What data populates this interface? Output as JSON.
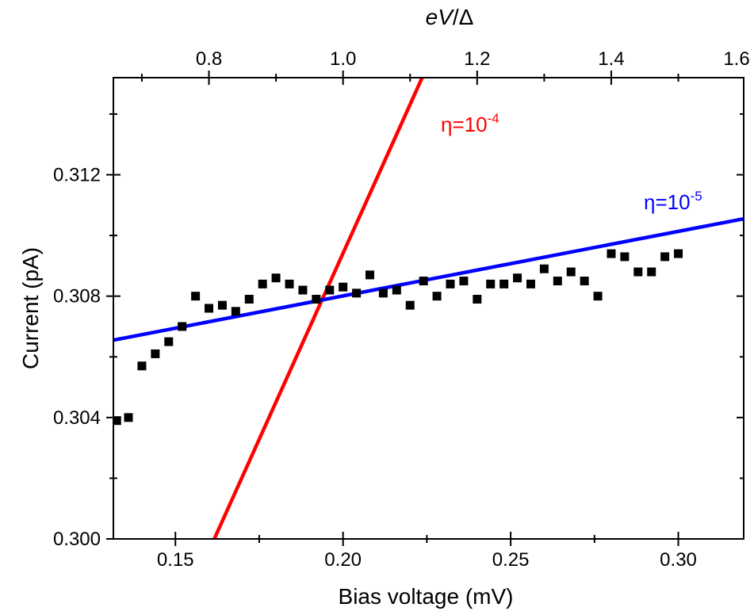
{
  "chart_data": {
    "type": "scatter",
    "title": "",
    "xlabel": "Bias voltage (mV)",
    "ylabel": "Current (pA)",
    "top_xlabel_italic": "eV",
    "top_xlabel_rest": "/Δ",
    "xlim": [
      0.1315,
      0.3195
    ],
    "ylim": [
      0.3,
      0.3152
    ],
    "top_xlim": [
      0.6575,
      1.5975
    ],
    "x_ticks": [
      0.15,
      0.2,
      0.25,
      0.3
    ],
    "x_tick_labels": [
      "0.15",
      "0.20",
      "0.25",
      "0.30"
    ],
    "top_x_ticks": [
      0.8,
      1.0,
      1.2,
      1.4,
      1.6
    ],
    "top_x_tick_labels": [
      "0.8",
      "1.0",
      "1.2",
      "1.4",
      "1.6"
    ],
    "y_ticks": [
      0.3,
      0.304,
      0.308,
      0.312
    ],
    "y_tick_labels": [
      "0.300",
      "0.304",
      "0.308",
      "0.312"
    ],
    "grid": false,
    "series": [
      {
        "kind": "points",
        "marker": "square",
        "color": "#000000",
        "x": [
          0.1325,
          0.136,
          0.14,
          0.144,
          0.148,
          0.152,
          0.156,
          0.16,
          0.164,
          0.168,
          0.172,
          0.176,
          0.18,
          0.184,
          0.188,
          0.192,
          0.196,
          0.2,
          0.204,
          0.208,
          0.212,
          0.216,
          0.22,
          0.224,
          0.228,
          0.232,
          0.236,
          0.24,
          0.244,
          0.248,
          0.252,
          0.256,
          0.26,
          0.264,
          0.268,
          0.272,
          0.276,
          0.28,
          0.284,
          0.288,
          0.292,
          0.296,
          0.3
        ],
        "y": [
          0.3039,
          0.304,
          0.3057,
          0.3061,
          0.3065,
          0.307,
          0.308,
          0.3076,
          0.3077,
          0.3075,
          0.3079,
          0.3084,
          0.3086,
          0.3084,
          0.3082,
          0.3079,
          0.3082,
          0.3083,
          0.3081,
          0.3087,
          0.3081,
          0.3082,
          0.3077,
          0.3085,
          0.308,
          0.3084,
          0.3085,
          0.3079,
          0.3084,
          0.3084,
          0.3086,
          0.3084,
          0.3089,
          0.3085,
          0.3088,
          0.3085,
          0.308,
          0.3094,
          0.3093,
          0.3088,
          0.3088,
          0.3093,
          0.3094
        ]
      },
      {
        "kind": "line",
        "name": "η=10",
        "exponent": "-4",
        "color": "#ff0000",
        "x": [
          0.1616,
          0.2236
        ],
        "y": [
          0.3,
          0.3152
        ]
      },
      {
        "kind": "line",
        "name": "η=10",
        "exponent": "-5",
        "color": "#0000ff",
        "x": [
          0.1315,
          0.3195
        ],
        "y": [
          0.30655,
          0.31055
        ]
      }
    ]
  }
}
